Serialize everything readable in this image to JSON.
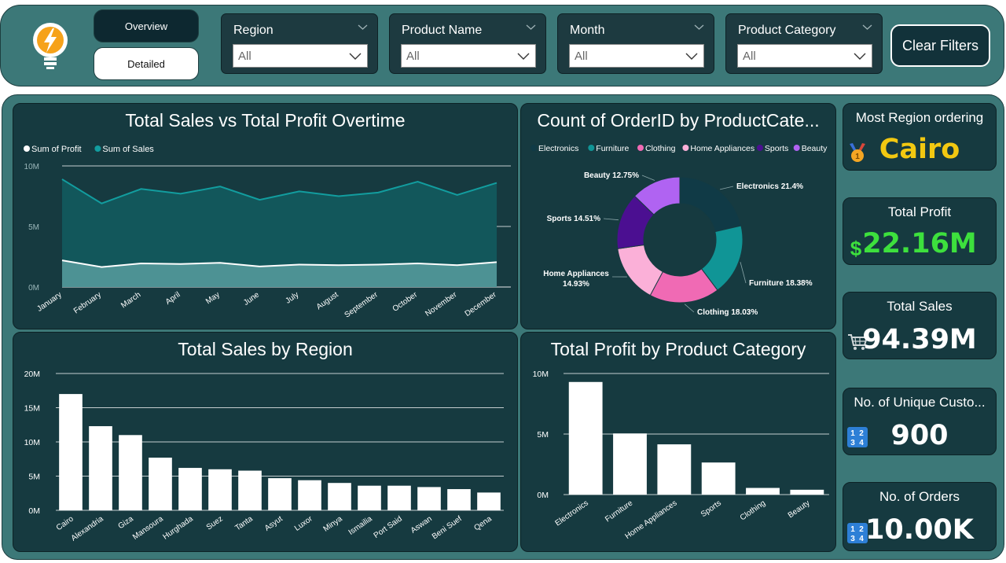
{
  "nav": {
    "overview_label": "Overview",
    "detailed_label": "Detailed"
  },
  "filters": [
    {
      "label": "Region",
      "value": "All"
    },
    {
      "label": "Product Name",
      "value": "All"
    },
    {
      "label": "Month",
      "value": "All"
    },
    {
      "label": "Product Category",
      "value": "All"
    }
  ],
  "clear_label": "Clear Filters",
  "cards": {
    "region": {
      "title": "Most Region ordering",
      "value": "Cairo",
      "color": "#f2c811"
    },
    "profit": {
      "title": "Total Profit",
      "value": "22.16M",
      "color": "#3de03d"
    },
    "sales": {
      "title": "Total Sales",
      "value": "94.39M",
      "color": "#ffffff"
    },
    "customers": {
      "title": "No. of Unique Custo...",
      "value": "900",
      "color": "#ffffff"
    },
    "orders": {
      "title": "No. of Orders",
      "value": "10.00K",
      "color": "#ffffff"
    }
  },
  "chart_titles": {
    "area": "Total Sales vs Total Profit Overtime",
    "donut": "Count of OrderID by ProductCate...",
    "region": "Total Sales by Region",
    "category": "Total Profit by Product Category"
  },
  "chart_data": [
    {
      "type": "area",
      "title": "Total Sales vs Total Profit Overtime",
      "x": [
        "January",
        "February",
        "March",
        "April",
        "May",
        "June",
        "July",
        "August",
        "September",
        "October",
        "November",
        "December"
      ],
      "series": [
        {
          "name": "Sum of Profit",
          "color": "#ffffff",
          "values": [
            2.2,
            1.65,
            1.95,
            1.9,
            2.0,
            1.7,
            1.85,
            1.8,
            1.85,
            1.95,
            1.8,
            2.05
          ]
        },
        {
          "name": "Sum of Sales",
          "color": "#129d9f",
          "values": [
            8.9,
            6.9,
            8.1,
            7.7,
            8.3,
            7.2,
            7.9,
            7.5,
            7.8,
            8.7,
            7.6,
            8.6
          ]
        }
      ],
      "y_ticks": [
        "0M",
        "5M",
        "10M"
      ],
      "ylim": [
        0,
        10
      ],
      "grid": true,
      "legend": "top-left"
    },
    {
      "type": "pie",
      "title": "Count of OrderID by ProductCate...",
      "categories": [
        "Electronics",
        "Furniture",
        "Clothing",
        "Home Appliances",
        "Sports",
        "Beauty"
      ],
      "values": [
        21.4,
        18.38,
        18.03,
        14.93,
        14.51,
        12.75
      ],
      "labels": [
        "Electronics 21.4%",
        "Furniture 18.38%",
        "Clothing 18.03%",
        "Home Appliances 14.93%",
        "Sports 14.51%",
        "Beauty 12.75%"
      ],
      "colors": [
        "#103a46",
        "#109596",
        "#f06ab4",
        "#fbb0d8",
        "#4b0f91",
        "#b063f2"
      ],
      "legend": "top"
    },
    {
      "type": "bar",
      "title": "Total Sales by Region",
      "categories": [
        "Cairo",
        "Alexandria",
        "Giza",
        "Mansoura",
        "Hurghada",
        "Suez",
        "Tanta",
        "Asyut",
        "Luxor",
        "Minya",
        "Ismailia",
        "Port Said",
        "Aswan",
        "Beni Suef",
        "Qena"
      ],
      "values": [
        17.0,
        12.3,
        11.0,
        7.7,
        6.2,
        6.0,
        5.8,
        4.7,
        4.4,
        4.0,
        3.6,
        3.6,
        3.4,
        3.1,
        2.6
      ],
      "y_ticks": [
        "0M",
        "5M",
        "10M",
        "15M",
        "20M"
      ],
      "ylim": [
        0,
        20
      ],
      "grid": true
    },
    {
      "type": "bar",
      "title": "Total Profit by Product Category",
      "categories": [
        "Electronics",
        "Furniture",
        "Home Appliances",
        "Sports",
        "Clothing",
        "Beauty"
      ],
      "values": [
        9.3,
        5.05,
        4.15,
        2.65,
        0.55,
        0.4
      ],
      "y_ticks": [
        "0M",
        "5M",
        "10M"
      ],
      "ylim": [
        0,
        10
      ],
      "grid": true
    }
  ]
}
